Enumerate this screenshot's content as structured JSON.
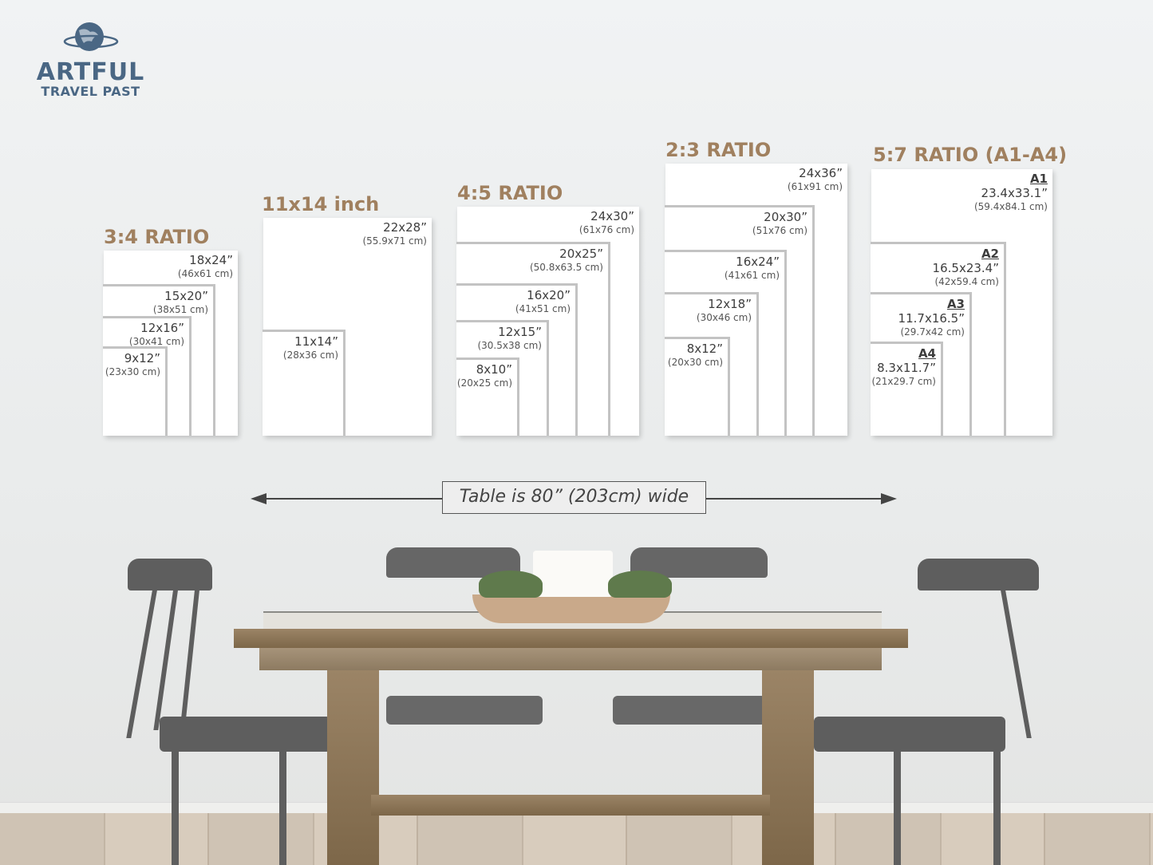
{
  "logo": {
    "line1": "ARTFUL",
    "line2": "TRAVEL PAST",
    "icon": "globe-icon",
    "color": "#4a6784"
  },
  "groups": [
    {
      "title": "3:4 RATIO",
      "frames": [
        {
          "inch": "18x24”",
          "cm": "(46x61 cm)"
        },
        {
          "inch": "15x20”",
          "cm": "(38x51 cm)"
        },
        {
          "inch": "12x16”",
          "cm": "(30x41 cm)"
        },
        {
          "inch": "9x12”",
          "cm": "(23x30 cm)"
        }
      ]
    },
    {
      "title": "11x14 inch",
      "frames": [
        {
          "inch": "22x28”",
          "cm": "(55.9x71 cm)"
        },
        {
          "inch": "11x14”",
          "cm": "(28x36 cm)"
        }
      ]
    },
    {
      "title": "4:5 RATIO",
      "frames": [
        {
          "inch": "24x30”",
          "cm": "(61x76 cm)"
        },
        {
          "inch": "20x25”",
          "cm": "(50.8x63.5 cm)"
        },
        {
          "inch": "16x20”",
          "cm": "(41x51 cm)"
        },
        {
          "inch": "12x15”",
          "cm": "(30.5x38 cm)"
        },
        {
          "inch": "8x10”",
          "cm": "(20x25 cm)"
        }
      ]
    },
    {
      "title": "2:3 RATIO",
      "frames": [
        {
          "inch": "24x36”",
          "cm": "(61x91 cm)"
        },
        {
          "inch": "20x30”",
          "cm": "(51x76 cm)"
        },
        {
          "inch": "16x24”",
          "cm": "(41x61 cm)"
        },
        {
          "inch": "12x18”",
          "cm": "(30x46 cm)"
        },
        {
          "inch": "8x12”",
          "cm": "(20x30 cm)"
        }
      ]
    },
    {
      "title": "5:7 RATIO (A1-A4)",
      "frames": [
        {
          "name": "A1",
          "inch": "23.4x33.1”",
          "cm": "(59.4x84.1 cm)"
        },
        {
          "name": "A2",
          "inch": "16.5x23.4”",
          "cm": "(42x59.4 cm)"
        },
        {
          "name": "A3",
          "inch": "11.7x16.5”",
          "cm": "(29.7x42 cm)"
        },
        {
          "name": "A4",
          "inch": "8.3x11.7”",
          "cm": "(21x29.7 cm)"
        }
      ]
    }
  ],
  "width_note": "Table is 80” (203cm) wide",
  "colors": {
    "title": "#a0805f",
    "frame_border": "#c3c3c3",
    "arrow": "#444444"
  }
}
